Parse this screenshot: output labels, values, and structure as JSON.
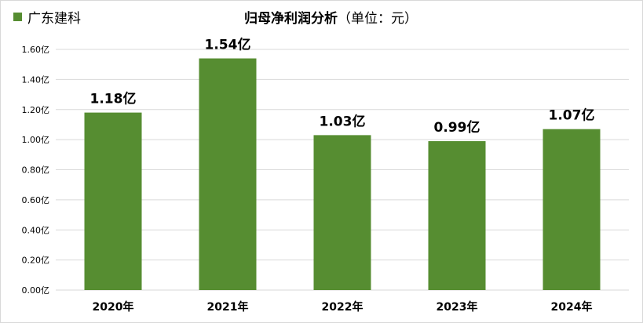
{
  "chart_data": {
    "type": "bar",
    "title": "归母净利润分析",
    "subtitle": "（单位：元）",
    "legend": {
      "label": "广东建科",
      "placement": "top-left"
    },
    "categories": [
      "2020年",
      "2021年",
      "2022年",
      "2023年",
      "2024年"
    ],
    "series": [
      {
        "name": "广东建科",
        "values": [
          1.18,
          1.54,
          1.03,
          0.99,
          1.07
        ]
      }
    ],
    "data_labels": [
      "1.18亿",
      "1.54亿",
      "1.03亿",
      "0.99亿",
      "1.07亿"
    ],
    "unit": "亿",
    "ylim": [
      0,
      1.6
    ],
    "yticks": [
      "0.00亿",
      "0.20亿",
      "0.40亿",
      "0.60亿",
      "0.80亿",
      "1.00亿",
      "1.20亿",
      "1.40亿",
      "1.60亿"
    ],
    "grid": true,
    "colors": {
      "bar": "#568D31",
      "grid": "#d9d9d9"
    }
  }
}
